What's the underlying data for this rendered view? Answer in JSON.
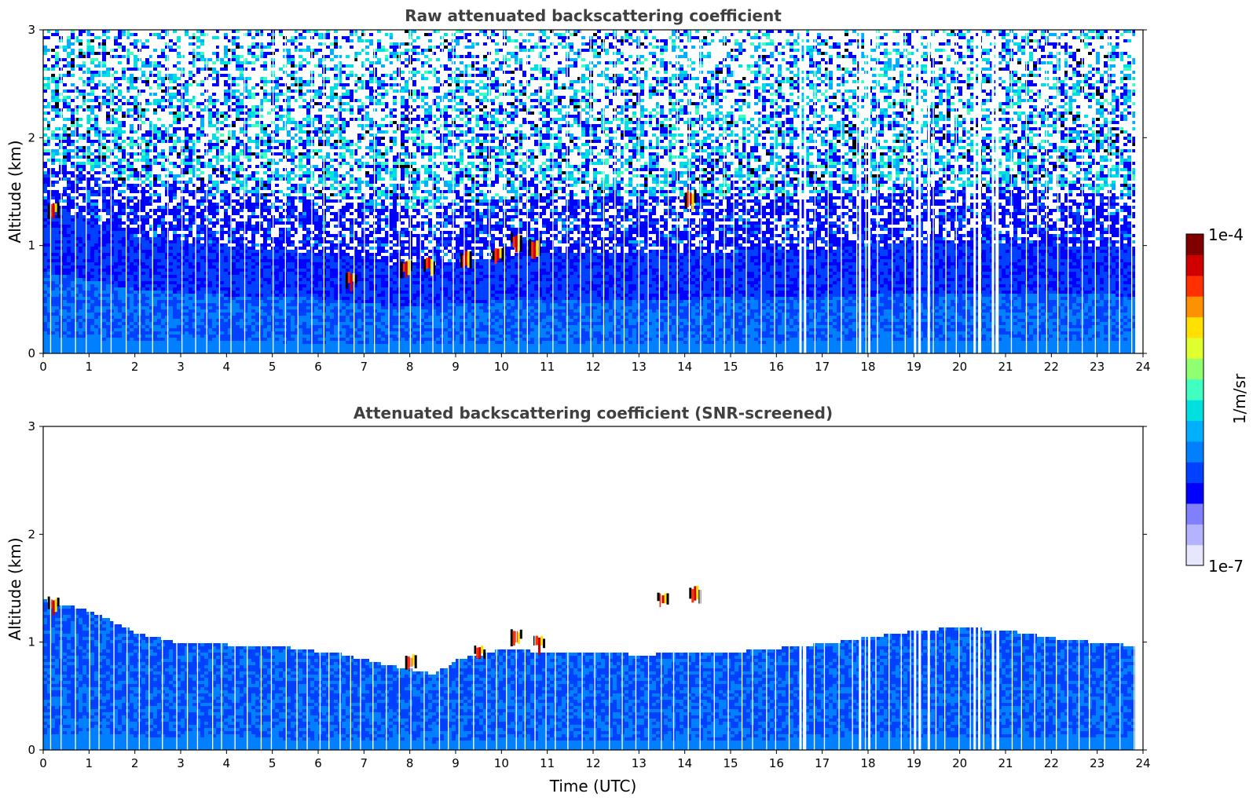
{
  "chart_data": [
    {
      "type": "heatmap",
      "title": "Raw attenuated backscattering coefficient",
      "xlabel": "",
      "ylabel": "Altitude (km)",
      "xlim": [
        0,
        24
      ],
      "ylim": [
        0,
        3
      ],
      "x_ticks": [
        "0",
        "1",
        "2",
        "3",
        "4",
        "5",
        "6",
        "7",
        "8",
        "9",
        "10",
        "11",
        "12",
        "13",
        "14",
        "15",
        "16",
        "17",
        "18",
        "19",
        "20",
        "21",
        "22",
        "23",
        "24"
      ],
      "y_ticks": [
        "0",
        "1",
        "2",
        "3"
      ],
      "data_end_hour": 23.8,
      "boundary_layer_top_km": [
        {
          "x": 0,
          "y": 1.4
        },
        {
          "x": 2,
          "y": 1.1
        },
        {
          "x": 4,
          "y": 1.0
        },
        {
          "x": 6,
          "y": 0.95
        },
        {
          "x": 8,
          "y": 0.8
        },
        {
          "x": 10,
          "y": 0.92
        },
        {
          "x": 11,
          "y": 0.95
        },
        {
          "x": 14,
          "y": 0.95
        },
        {
          "x": 17,
          "y": 0.98
        },
        {
          "x": 20,
          "y": 1.05
        },
        {
          "x": 23.8,
          "y": 1.0
        }
      ],
      "cloud_features": [
        {
          "x": 0.2,
          "y": 1.35
        },
        {
          "x": 6.7,
          "y": 0.7
        },
        {
          "x": 7.9,
          "y": 0.8
        },
        {
          "x": 8.4,
          "y": 0.82
        },
        {
          "x": 9.2,
          "y": 0.88
        },
        {
          "x": 9.9,
          "y": 0.92
        },
        {
          "x": 10.3,
          "y": 1.05
        },
        {
          "x": 10.7,
          "y": 1.0
        },
        {
          "x": 14.1,
          "y": 1.45
        }
      ],
      "data_gaps_hours": [
        16.5,
        16.6,
        17.8,
        18.0,
        19.0,
        19.1,
        19.3,
        20.3,
        20.4,
        20.7,
        20.8
      ]
    },
    {
      "type": "heatmap",
      "title": "Attenuated backscattering coefficient (SNR-screened)",
      "xlabel": "Time (UTC)",
      "ylabel": "Altitude (km)",
      "xlim": [
        0,
        24
      ],
      "ylim": [
        0,
        3
      ],
      "x_ticks": [
        "0",
        "1",
        "2",
        "3",
        "4",
        "5",
        "6",
        "7",
        "8",
        "9",
        "10",
        "11",
        "12",
        "13",
        "14",
        "15",
        "16",
        "17",
        "18",
        "19",
        "20",
        "21",
        "22",
        "23",
        "24"
      ],
      "y_ticks": [
        "0",
        "1",
        "2",
        "3"
      ],
      "data_end_hour": 23.8,
      "screened_top_km": [
        {
          "x": 0,
          "y": 1.4
        },
        {
          "x": 1,
          "y": 1.3
        },
        {
          "x": 2,
          "y": 1.1
        },
        {
          "x": 3,
          "y": 1.0
        },
        {
          "x": 5,
          "y": 0.98
        },
        {
          "x": 6.5,
          "y": 0.9
        },
        {
          "x": 7.5,
          "y": 0.8
        },
        {
          "x": 8.5,
          "y": 0.72
        },
        {
          "x": 9,
          "y": 0.85
        },
        {
          "x": 10,
          "y": 0.95
        },
        {
          "x": 11,
          "y": 0.92
        },
        {
          "x": 13,
          "y": 0.9
        },
        {
          "x": 15,
          "y": 0.92
        },
        {
          "x": 17,
          "y": 1.0
        },
        {
          "x": 19,
          "y": 1.12
        },
        {
          "x": 20,
          "y": 1.15
        },
        {
          "x": 21,
          "y": 1.12
        },
        {
          "x": 22,
          "y": 1.05
        },
        {
          "x": 23.8,
          "y": 0.98
        }
      ],
      "cloud_features": [
        {
          "x": 0.2,
          "y": 1.35
        },
        {
          "x": 8.0,
          "y": 0.82
        },
        {
          "x": 9.5,
          "y": 0.9
        },
        {
          "x": 10.3,
          "y": 1.05
        },
        {
          "x": 10.8,
          "y": 1.0
        },
        {
          "x": 13.5,
          "y": 1.4
        },
        {
          "x": 14.2,
          "y": 1.45
        }
      ],
      "data_gaps_hours": [
        16.5,
        16.6,
        17.8,
        18.0,
        19.0,
        19.1,
        19.3,
        20.3,
        20.4,
        20.7,
        20.8
      ]
    }
  ],
  "colorbar": {
    "max_label": "1e-4",
    "min_label": "1e-7",
    "unit_label": "1/m/sr",
    "scale": "log",
    "colors": [
      "#e6e6ff",
      "#b3b3ff",
      "#8080ff",
      "#0000ff",
      "#0040ff",
      "#0080ff",
      "#00b0ff",
      "#00e0e0",
      "#40ffc0",
      "#90ff70",
      "#e0ff30",
      "#ffe000",
      "#ff9000",
      "#ff3000",
      "#d00000",
      "#800000"
    ]
  }
}
